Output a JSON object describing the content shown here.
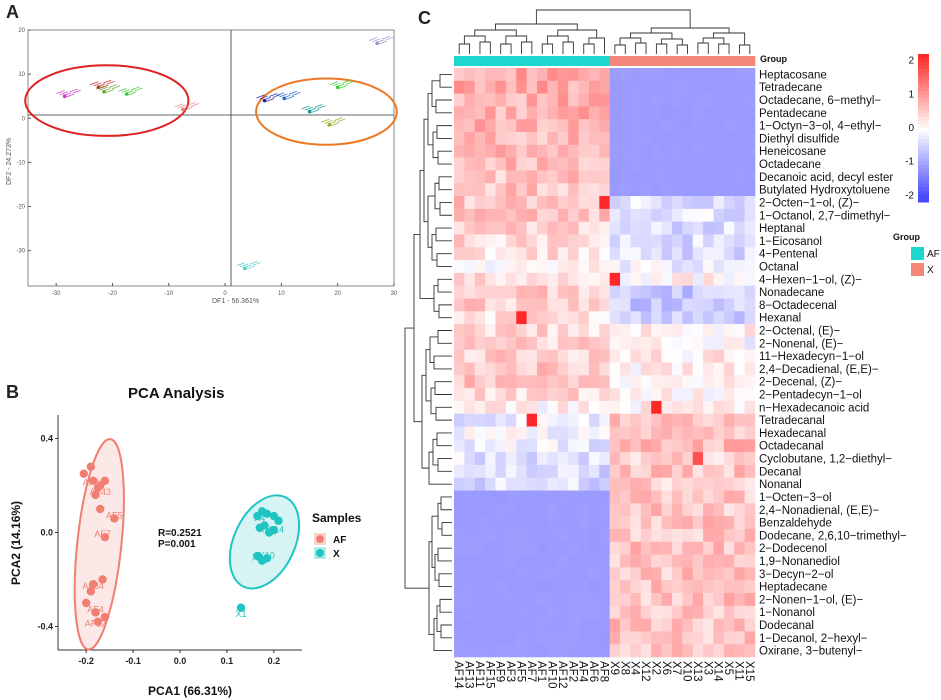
{
  "panels": {
    "a": "A",
    "b": "B",
    "c": "C"
  },
  "chart_data": [
    {
      "panel": "A",
      "type": "scatter",
      "title": "",
      "xlabel": "DF1 - 56.361%",
      "ylabel": "DF2 - 24.273%",
      "xlim": [
        -35,
        30
      ],
      "ylim": [
        -38,
        20
      ],
      "xticks": [
        -30,
        -20,
        -10,
        0,
        10,
        20,
        30
      ],
      "yticks": [
        20,
        10,
        0,
        -10,
        -20,
        -30
      ],
      "series": [
        {
          "name": "A1",
          "color": "#cc33cc",
          "x": -28.5,
          "y": 5.0
        },
        {
          "name": "A2",
          "color": "#bb2222",
          "x": -22.5,
          "y": 7.0
        },
        {
          "name": "A3",
          "color": "#66aa33",
          "x": -21.5,
          "y": 6.0
        },
        {
          "name": "A4",
          "color": "#33cc33",
          "x": -17.5,
          "y": 5.5
        },
        {
          "name": "A5",
          "color": "#e08888",
          "x": -7.5,
          "y": 2.0
        },
        {
          "name": "A6",
          "color": "#2222aa",
          "x": 7.0,
          "y": 4.0
        },
        {
          "name": "A7",
          "color": "#2266cc",
          "x": 10.5,
          "y": 4.5
        },
        {
          "name": "A8",
          "color": "#119999",
          "x": 15.0,
          "y": 1.5
        },
        {
          "name": "A9",
          "color": "#33cc33",
          "x": 20.0,
          "y": 7.0
        },
        {
          "name": "A10",
          "color": "#99aa22",
          "x": 18.5,
          "y": -1.5
        },
        {
          "name": "A11",
          "color": "#9999cc",
          "x": 27.0,
          "y": 17.0
        },
        {
          "name": "A12",
          "color": "#55cccc",
          "x": 3.5,
          "y": -34.0
        }
      ],
      "ellipses": [
        {
          "color": "#dd2222",
          "cx": -21,
          "cy": 4,
          "rx": 14.5,
          "ry": 8
        },
        {
          "color": "#ee7722",
          "cx": 18,
          "cy": 1.5,
          "rx": 12.5,
          "ry": 7.5
        }
      ]
    },
    {
      "panel": "B",
      "type": "scatter",
      "title": "PCA Analysis",
      "xlabel": "PCA1 (66.31%)",
      "ylabel": "PCA2 (14.16%)",
      "xlim": [
        -0.26,
        0.26
      ],
      "ylim": [
        -0.5,
        0.5
      ],
      "xticks": [
        -0.2,
        -0.1,
        0.0,
        0.1,
        0.2
      ],
      "yticks": [
        0.4,
        0.0,
        -0.4
      ],
      "annotation": [
        "R=0.2521",
        "P=0.001"
      ],
      "legend_title": "Samples",
      "series": [
        {
          "name": "AF",
          "color": "#f07f72",
          "x": [
            -0.19,
            -0.205,
            -0.185,
            -0.17,
            -0.175,
            -0.18,
            -0.16,
            -0.17,
            -0.14,
            -0.16,
            -0.165,
            -0.185,
            -0.19,
            -0.2,
            -0.18,
            -0.175,
            -0.16
          ],
          "y": [
            0.28,
            0.25,
            0.22,
            0.2,
            0.19,
            0.16,
            0.22,
            0.1,
            0.06,
            -0.02,
            -0.2,
            -0.22,
            -0.25,
            -0.3,
            -0.34,
            -0.38,
            -0.36
          ],
          "labels": [
            {
              "text": "AF0",
              "x": -0.19,
              "y": 0.2
            },
            {
              "text": "AF43",
              "x": -0.17,
              "y": 0.16
            },
            {
              "text": "AF5",
              "x": -0.14,
              "y": 0.06
            },
            {
              "text": "AF7",
              "x": -0.165,
              "y": -0.02
            },
            {
              "text": "AF84",
              "x": -0.185,
              "y": -0.24
            },
            {
              "text": "AF4",
              "x": -0.18,
              "y": -0.34
            },
            {
              "text": "AF12",
              "x": -0.18,
              "y": -0.4
            }
          ]
        },
        {
          "name": "X",
          "color": "#20c4c2",
          "x": [
            0.165,
            0.175,
            0.185,
            0.2,
            0.21,
            0.18,
            0.17,
            0.19,
            0.2,
            0.165,
            0.175,
            0.185,
            0.13
          ],
          "y": [
            0.07,
            0.09,
            0.08,
            0.07,
            0.05,
            0.03,
            0.02,
            0.0,
            0.01,
            -0.1,
            -0.12,
            -0.11,
            -0.32
          ],
          "labels": [
            {
              "text": "X4",
              "x": 0.17,
              "y": 0.05
            },
            {
              "text": "X12",
              "x": 0.185,
              "y": 0.0
            },
            {
              "text": "X14",
              "x": 0.205,
              "y": 0.0
            },
            {
              "text": "X8",
              "x": 0.165,
              "y": -0.12
            },
            {
              "text": "X10",
              "x": 0.185,
              "y": -0.11
            },
            {
              "text": "X1",
              "x": 0.13,
              "y": -0.36
            }
          ]
        }
      ]
    },
    {
      "panel": "C",
      "type": "heatmap",
      "legend_title": "Group",
      "color_scale": {
        "ticks": [
          2,
          1,
          0,
          -1,
          -2
        ],
        "colors": [
          "#ee1111",
          "#ffffff",
          "#1111ee"
        ]
      },
      "columns": [
        "AF14",
        "AF13",
        "AF11",
        "AF15",
        "AF9",
        "AF3",
        "AF5",
        "AF7",
        "AF1",
        "AF10",
        "AF12",
        "AF2",
        "AF4",
        "AF6",
        "AF8",
        "X9",
        "X8",
        "X4",
        "X12",
        "X2",
        "X6",
        "X7",
        "X10",
        "X13",
        "X3",
        "X14",
        "X5",
        "X11",
        "X15"
      ],
      "groups": [
        {
          "name": "AF",
          "color": "#1ed6d0",
          "count": 15
        },
        {
          "name": "X",
          "color": "#f3877a",
          "count": 14
        }
      ],
      "rows": [
        "Heptacosane",
        "Tetradecane",
        "Octadecane, 6−methyl−",
        "Pentadecane",
        "1−Octyn−3−ol, 4−ethyl−",
        "Diethyl disulfide",
        "Heneicosane",
        "Octadecane",
        "Decanoic acid, decyl ester",
        "Butylated Hydroxytoluene",
        "2−Octen−1−ol, (Z)−",
        "1−Octanol, 2,7−dimethyl−",
        "Heptanal",
        "1−Eicosanol",
        "4−Pentenal",
        "Octanal",
        "4−Hexen−1−ol, (Z)−",
        "Nonadecane",
        "8−Octadecenal",
        "Hexanal",
        "2−Octenal, (E)−",
        "2−Nonenal, (E)−",
        "11−Hexadecyn−1−ol",
        "2,4−Decadienal, (E,E)−",
        "2−Decenal, (Z)−",
        "2−Pentadecyn−1−ol",
        "n−Hexadecanoic acid",
        "Tetradecanal",
        "Hexadecanal",
        "Octadecanal",
        "Cyclobutane, 1,2−diethyl−",
        "Decanal",
        "Nonanal",
        "1−Octen−3−ol",
        "2,4−Nonadienal, (E,E)−",
        "Benzaldehyde",
        "Dodecane, 2,6,10−trimethyl−",
        "2−Dodecenol",
        "1,9−Nonanediol",
        "3−Decyn−2−ol",
        "Heptadecane",
        "2−Nonen−1−ol, (E)−",
        "1−Nonanol",
        "Dodecanal",
        "1−Decanol, 2−hexyl−",
        "Oxirane, 3−butenyl−"
      ],
      "block_means": [
        [
          0.9,
          -1.1
        ],
        [
          0.9,
          -1.1
        ],
        [
          0.8,
          -1.1
        ],
        [
          0.8,
          -1.1
        ],
        [
          0.8,
          -1.1
        ],
        [
          0.7,
          -1.1
        ],
        [
          0.7,
          -1.1
        ],
        [
          0.7,
          -1.1
        ],
        [
          0.6,
          -1.1
        ],
        [
          0.6,
          -1.1
        ],
        [
          0.6,
          -0.3
        ],
        [
          0.6,
          -0.3
        ],
        [
          0.5,
          -0.4
        ],
        [
          0.4,
          -0.4
        ],
        [
          0.3,
          -0.4
        ],
        [
          0.0,
          -0.2
        ],
        [
          0.3,
          0.1
        ],
        [
          0.5,
          -0.6
        ],
        [
          0.5,
          -0.6
        ],
        [
          0.3,
          -0.5
        ],
        [
          0.4,
          0.1
        ],
        [
          0.5,
          0.0
        ],
        [
          0.5,
          0.2
        ],
        [
          0.6,
          0.1
        ],
        [
          0.6,
          0.1
        ],
        [
          0.4,
          0.1
        ],
        [
          0.1,
          0.2
        ],
        [
          -0.2,
          0.6
        ],
        [
          -0.1,
          0.6
        ],
        [
          -0.2,
          0.7
        ],
        [
          -0.3,
          0.5
        ],
        [
          -0.4,
          0.6
        ],
        [
          -0.4,
          0.5
        ],
        [
          -1.1,
          0.6
        ],
        [
          -1.1,
          0.6
        ],
        [
          -1.1,
          0.6
        ],
        [
          -1.1,
          0.6
        ],
        [
          -1.1,
          0.6
        ],
        [
          -1.1,
          0.6
        ],
        [
          -1.1,
          0.6
        ],
        [
          -1.1,
          0.6
        ],
        [
          -1.1,
          0.6
        ],
        [
          -1.1,
          0.6
        ],
        [
          -1.1,
          0.6
        ],
        [
          -1.1,
          0.6
        ],
        [
          -1.1,
          0.6
        ]
      ],
      "hotspots": [
        {
          "row": "4−Hexen−1−ol, (Z)−",
          "column": "X9",
          "value": 3.0
        },
        {
          "row": "n−Hexadecanoic acid",
          "column": "X2",
          "value": 3.0
        },
        {
          "row": "Tetradecanal",
          "column": "AF7",
          "value": 2.8
        },
        {
          "row": "Hexanal",
          "column": "AF5",
          "value": 2.2
        },
        {
          "row": "2−Octen−1−ol, (Z)−",
          "column": "AF8",
          "value": 2.2
        },
        {
          "row": "Cyclobutane, 1,2−diethyl−",
          "column": "X13",
          "value": 1.8
        }
      ]
    }
  ]
}
